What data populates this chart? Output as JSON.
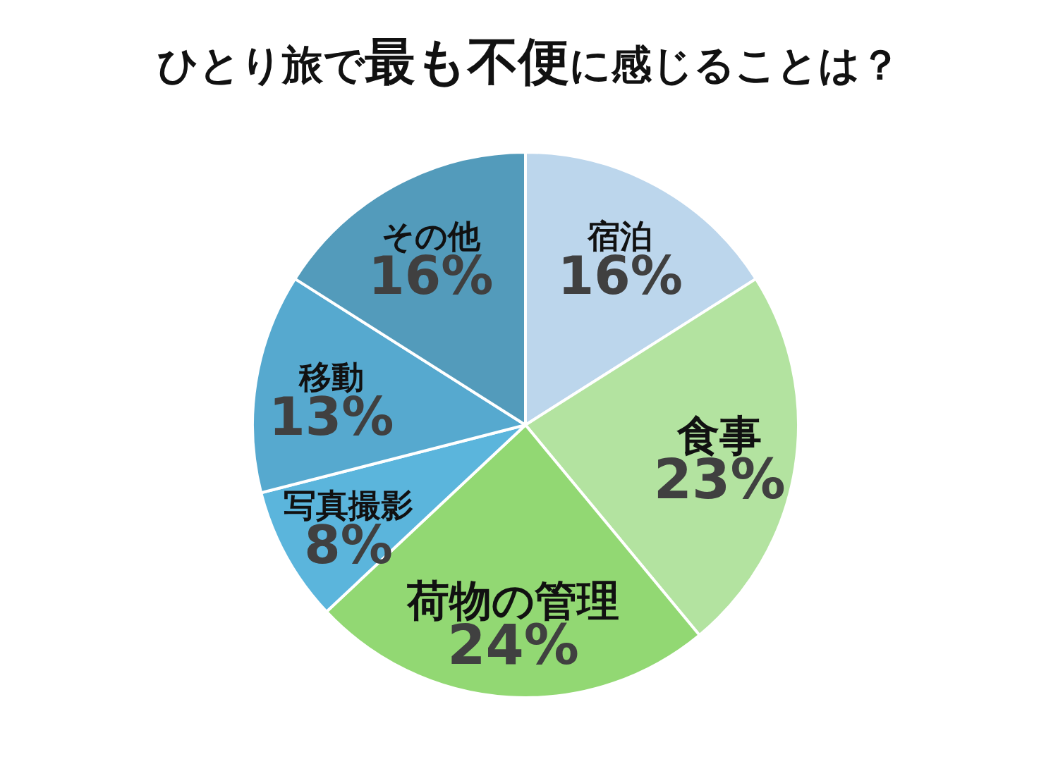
{
  "chart_data": {
    "type": "pie",
    "title": "ひとり旅で**最も不便**に感じることは？",
    "categories": [
      "宿泊",
      "食事",
      "荷物の管理",
      "写真撮影",
      "移動",
      "その他"
    ],
    "values": [
      16,
      23,
      24,
      8,
      13,
      16
    ],
    "value_labels": [
      "16%",
      "23%",
      "24%",
      "8%",
      "13%",
      "16%"
    ],
    "colors": [
      "#bcd6ec",
      "#b3e3a0",
      "#92d873",
      "#5bb5dc",
      "#56a9cf",
      "#539bbb"
    ]
  }
}
